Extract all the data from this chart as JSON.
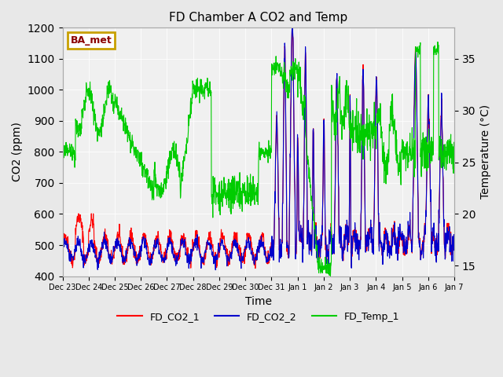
{
  "title": "FD Chamber A CO2 and Temp",
  "xlabel": "Time",
  "ylabel_left": "CO2 (ppm)",
  "ylabel_right": "Temperature (°C)",
  "ylim_left": [
    400,
    1200
  ],
  "ylim_right": [
    14,
    38
  ],
  "background_color": "#e8e8e8",
  "plot_bg_color": "#f0f0f0",
  "legend_label": "BA_met",
  "legend_box_color": "#c8a000",
  "legend_text_color": "#8b0000",
  "series_colors": {
    "FD_CO2_1": "#ff0000",
    "FD_CO2_2": "#0000cc",
    "FD_Temp_1": "#00cc00"
  },
  "tick_labels": [
    "Dec 23",
    "Dec 24",
    "Dec 25",
    "Dec 26",
    "Dec 27",
    "Dec 28",
    "Dec 29",
    "Dec 30",
    "Dec 31",
    "Jan 1",
    "Jan 2",
    "Jan 3",
    "Jan 4",
    "Jan 5",
    "Jan 6",
    "Jan 7"
  ],
  "n_points": 1440,
  "seed": 42
}
